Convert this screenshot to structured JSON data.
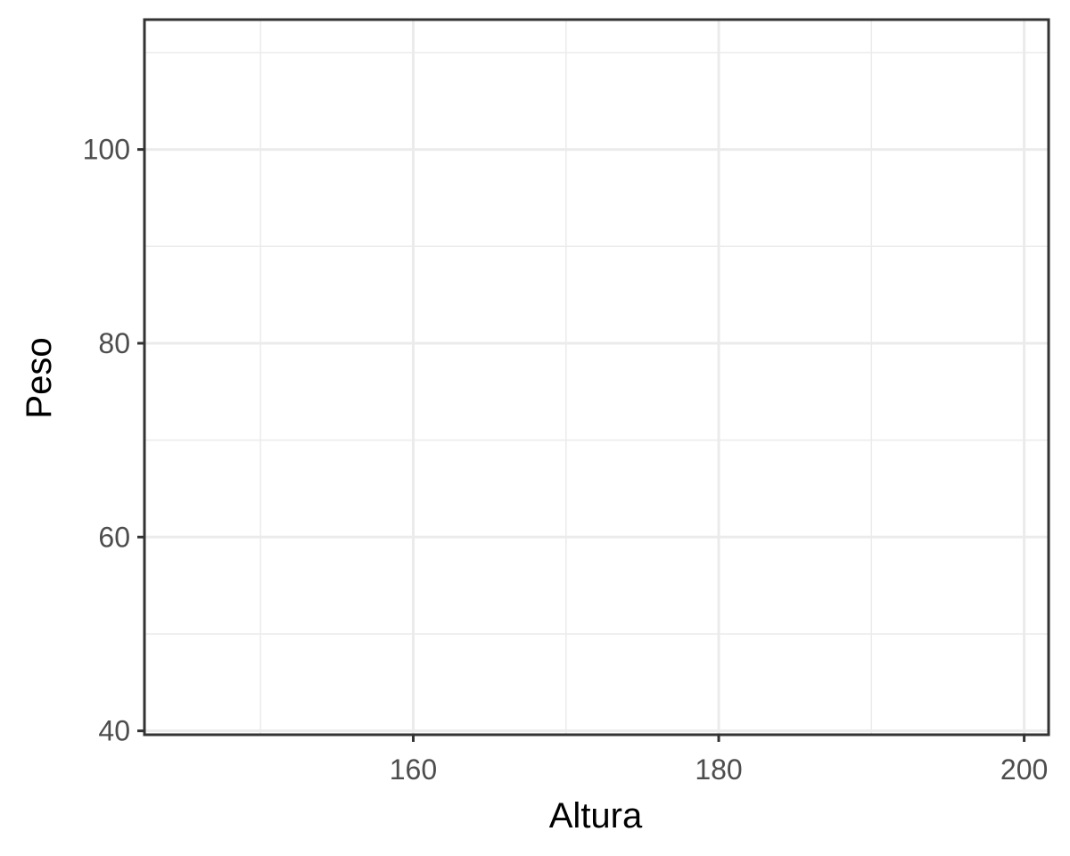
{
  "chart_data": {
    "type": "scatter",
    "title": "",
    "xlabel": "Altura",
    "ylabel": "Peso",
    "xlim": [
      142.4,
      201.6
    ],
    "ylim": [
      39.6,
      113.4
    ],
    "x_major_ticks": [
      160,
      180,
      200
    ],
    "x_minor_ticks": [
      150,
      170,
      190
    ],
    "y_major_ticks": [
      40,
      60,
      80,
      100
    ],
    "y_minor_ticks": [
      50,
      70,
      90,
      110
    ],
    "x_tick_labels": [
      "160",
      "180",
      "200"
    ],
    "y_tick_labels": [
      "40",
      "60",
      "80",
      "100"
    ],
    "series": [
      {
        "x": [],
        "y": []
      }
    ],
    "grid": true,
    "legend": "none",
    "colors": {
      "background": "#ffffff",
      "grid": "#ebebeb",
      "border": "#333333",
      "tick_text": "#4d4d4d",
      "title_text": "#000000"
    }
  }
}
